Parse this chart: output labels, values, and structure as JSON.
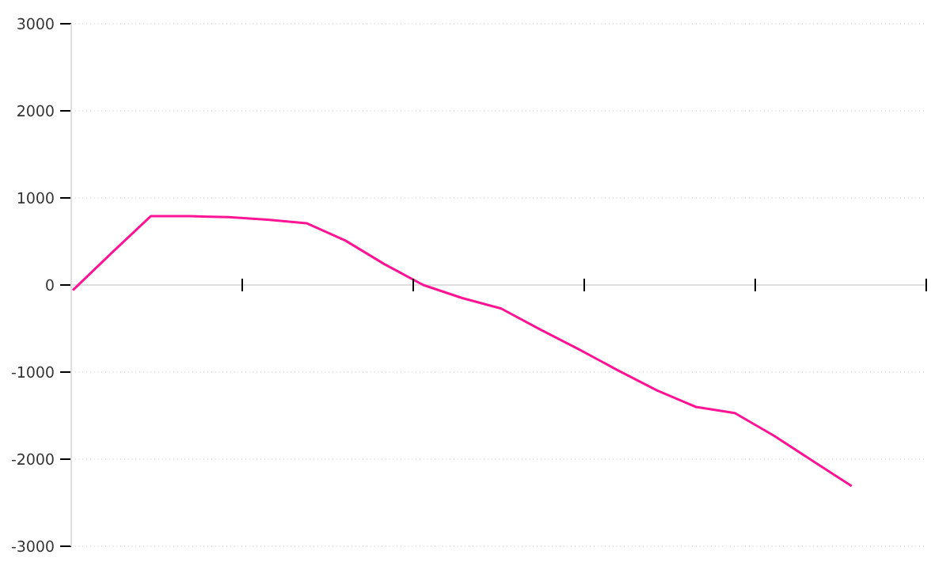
{
  "chart_data": {
    "type": "line",
    "categories": [
      null,
      null,
      null,
      null,
      null,
      null,
      null,
      null,
      null,
      null,
      null,
      null,
      null,
      null,
      null,
      null,
      null,
      null,
      null,
      null,
      null
    ],
    "values": [
      -60,
      370,
      790,
      790,
      780,
      750,
      710,
      510,
      240,
      0,
      -150,
      -270,
      -510,
      -740,
      -980,
      -1210,
      -1400,
      -1470,
      -1730,
      -2020,
      -2310
    ],
    "color": "#ff1493",
    "ylim": [
      -3000,
      3000
    ],
    "yticks": [
      -3000,
      -2000,
      -1000,
      0,
      1000,
      2000,
      3000
    ],
    "grid": "y",
    "marker": "none",
    "line_style": "solid",
    "tick_labels": "y"
  }
}
